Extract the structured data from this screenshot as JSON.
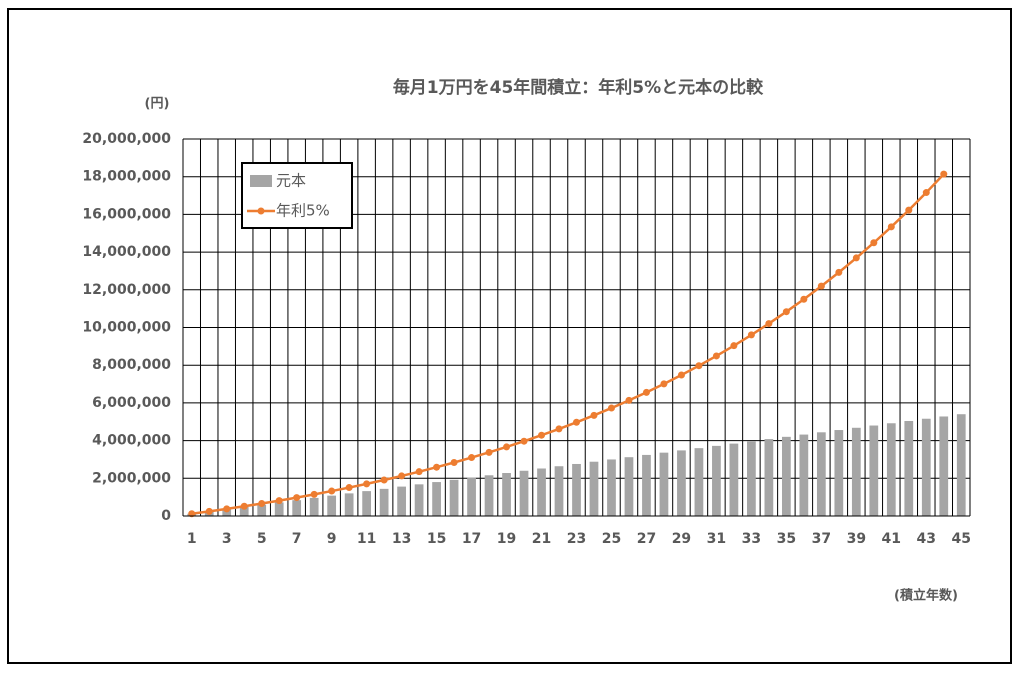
{
  "chart_data": {
    "type": "bar-line",
    "title": "毎月1万円を45年間積立：年利5%と元本の比較",
    "y_label": "(円)",
    "x_label": "(積立年数)",
    "categories": [
      1,
      null,
      3,
      null,
      5,
      null,
      7,
      null,
      9,
      null,
      11,
      null,
      13,
      null,
      15,
      null,
      17,
      null,
      19,
      null,
      21,
      null,
      23,
      null,
      25,
      null,
      27,
      null,
      29,
      null,
      31,
      null,
      33,
      null,
      35,
      null,
      37,
      null,
      39,
      null,
      41,
      null,
      43,
      null,
      45
    ],
    "series": [
      {
        "name": "元本",
        "type": "bar",
        "color": "#a5a5a5",
        "values": [
          120000,
          240000,
          360000,
          480000,
          600000,
          720000,
          840000,
          960000,
          1080000,
          1200000,
          1320000,
          1440000,
          1560000,
          1680000,
          1800000,
          1920000,
          2040000,
          2160000,
          2280000,
          2400000,
          2520000,
          2640000,
          2760000,
          2880000,
          3000000,
          3120000,
          3240000,
          3360000,
          3480000,
          3600000,
          3720000,
          3840000,
          3960000,
          4080000,
          4200000,
          4320000,
          4440000,
          4560000,
          4680000,
          4800000,
          4920000,
          5040000,
          5160000,
          5280000,
          5400000
        ]
      },
      {
        "name": "年利5%",
        "type": "line",
        "color": "#ed7d31",
        "values": [
          120000,
          246000,
          378300,
          517000,
          663000,
          816000,
          977000,
          1146000,
          1323000,
          1509000,
          1705000,
          1910000,
          2126000,
          2352000,
          2589000,
          2839000,
          3101000,
          3376000,
          3665000,
          3968000,
          4286000,
          4621000,
          4972000,
          5340000,
          5727000,
          6134000,
          6560000,
          7008000,
          7479000,
          7973000,
          8491000,
          9036000,
          9608000,
          10208000,
          10838000,
          11500000,
          12195000,
          12925000,
          13691000,
          14496000,
          15341000,
          16228000,
          17159000,
          18137000,
          null
        ]
      }
    ],
    "ylim": [
      0,
      20000000
    ],
    "yticks": [
      0,
      {
        "value": 2000000,
        "label": "2,000,000"
      },
      {
        "value": 4000000,
        "label": "4,000,000"
      },
      {
        "value": 6000000,
        "label": "6,000,000"
      },
      {
        "value": 8000000,
        "label": "8,000,000"
      },
      {
        "value": 10000000,
        "label": "10,000,000"
      },
      {
        "value": 12000000,
        "label": "12,000,000"
      },
      {
        "value": 14000000,
        "label": "14,000,000"
      },
      {
        "value": 16000000,
        "label": "16,000,000"
      },
      {
        "value": 18000000,
        "label": "18,000,000"
      },
      {
        "value": 20000000,
        "label": "20,000,000"
      }
    ],
    "grid": true,
    "legend": "upper-left"
  }
}
